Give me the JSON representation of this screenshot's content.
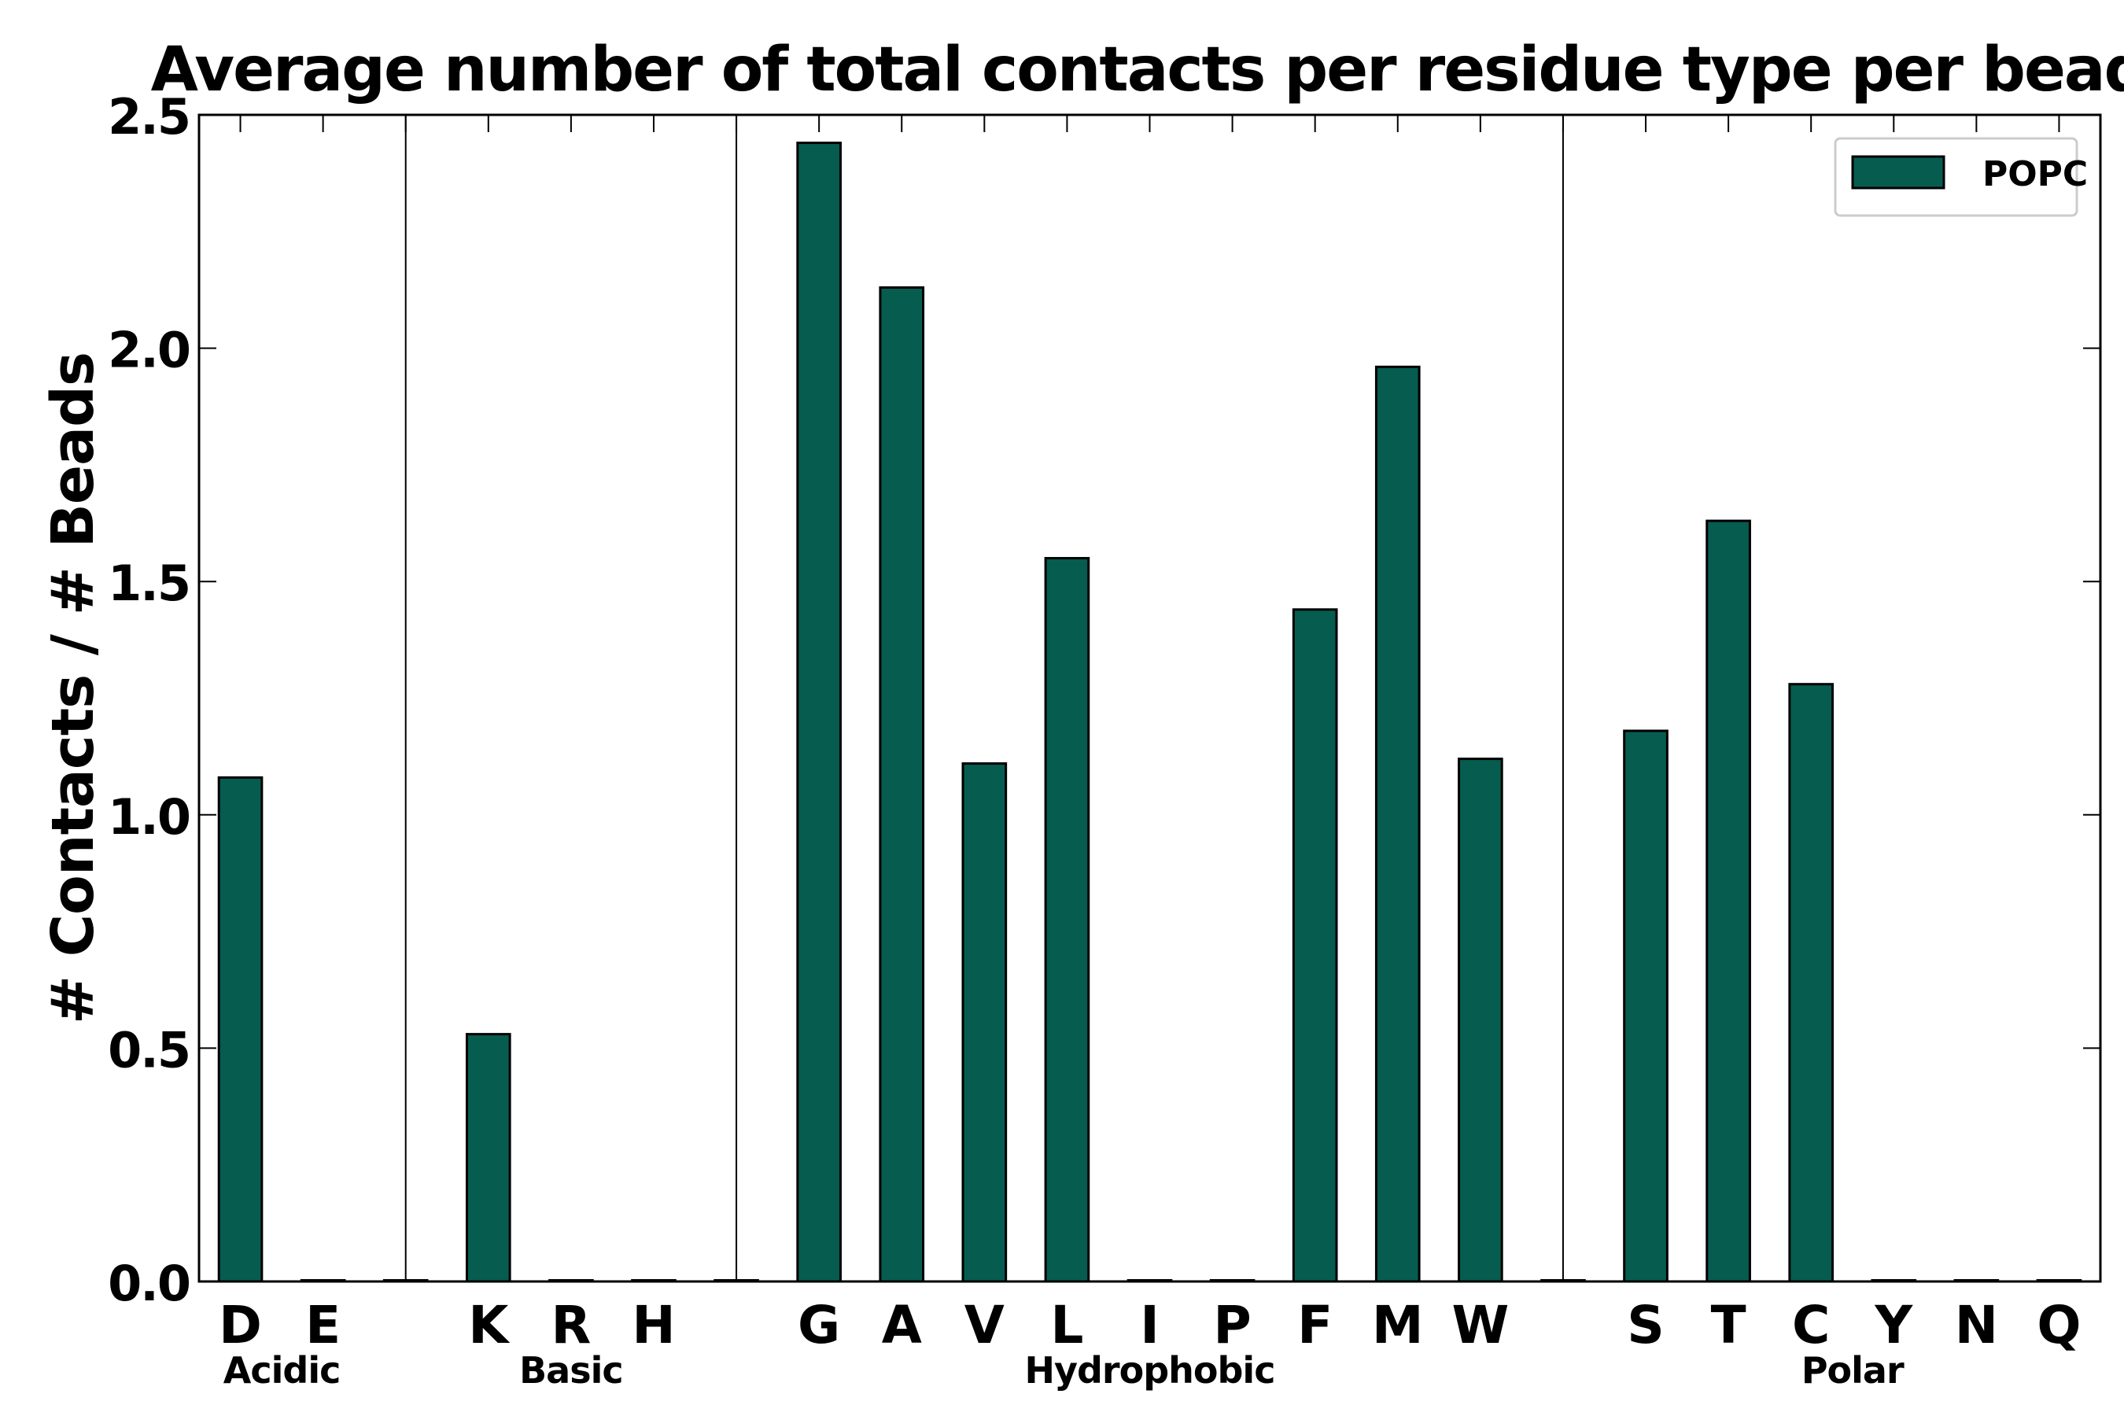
{
  "chart_data": {
    "type": "bar",
    "title": "Average number of total contacts per residue type per bead",
    "ylabel": "# Contacts / # Beads",
    "xlabel": "",
    "ylim": [
      0,
      2.5
    ],
    "yticks": [
      "0.0",
      "0.5",
      "1.0",
      "1.5",
      "2.0",
      "2.5"
    ],
    "legend_position": "top-right",
    "bar_color": "#065c4f",
    "edge_color": "#000000",
    "series": [
      {
        "name": "POPC",
        "values": [
          1.08,
          0,
          0,
          0.53,
          0,
          0,
          0,
          2.44,
          2.13,
          1.11,
          1.55,
          0,
          0,
          1.44,
          1.96,
          1.12,
          0,
          1.18,
          1.63,
          1.28,
          0,
          0,
          0
        ]
      }
    ],
    "categories": [
      "D",
      "E",
      "",
      "K",
      "R",
      "H",
      "",
      "G",
      "A",
      "V",
      "L",
      "I",
      "P",
      "F",
      "M",
      "W",
      "",
      "S",
      "T",
      "C",
      "Y",
      "N",
      "Q"
    ],
    "groups": [
      {
        "label": "Acidic",
        "start": 0,
        "end": 1
      },
      {
        "label": "Basic",
        "start": 3,
        "end": 5
      },
      {
        "label": "Hydrophobic",
        "start": 7,
        "end": 15
      },
      {
        "label": "Polar",
        "start": 17,
        "end": 22
      }
    ],
    "separators_after": [
      2,
      6,
      16
    ]
  }
}
